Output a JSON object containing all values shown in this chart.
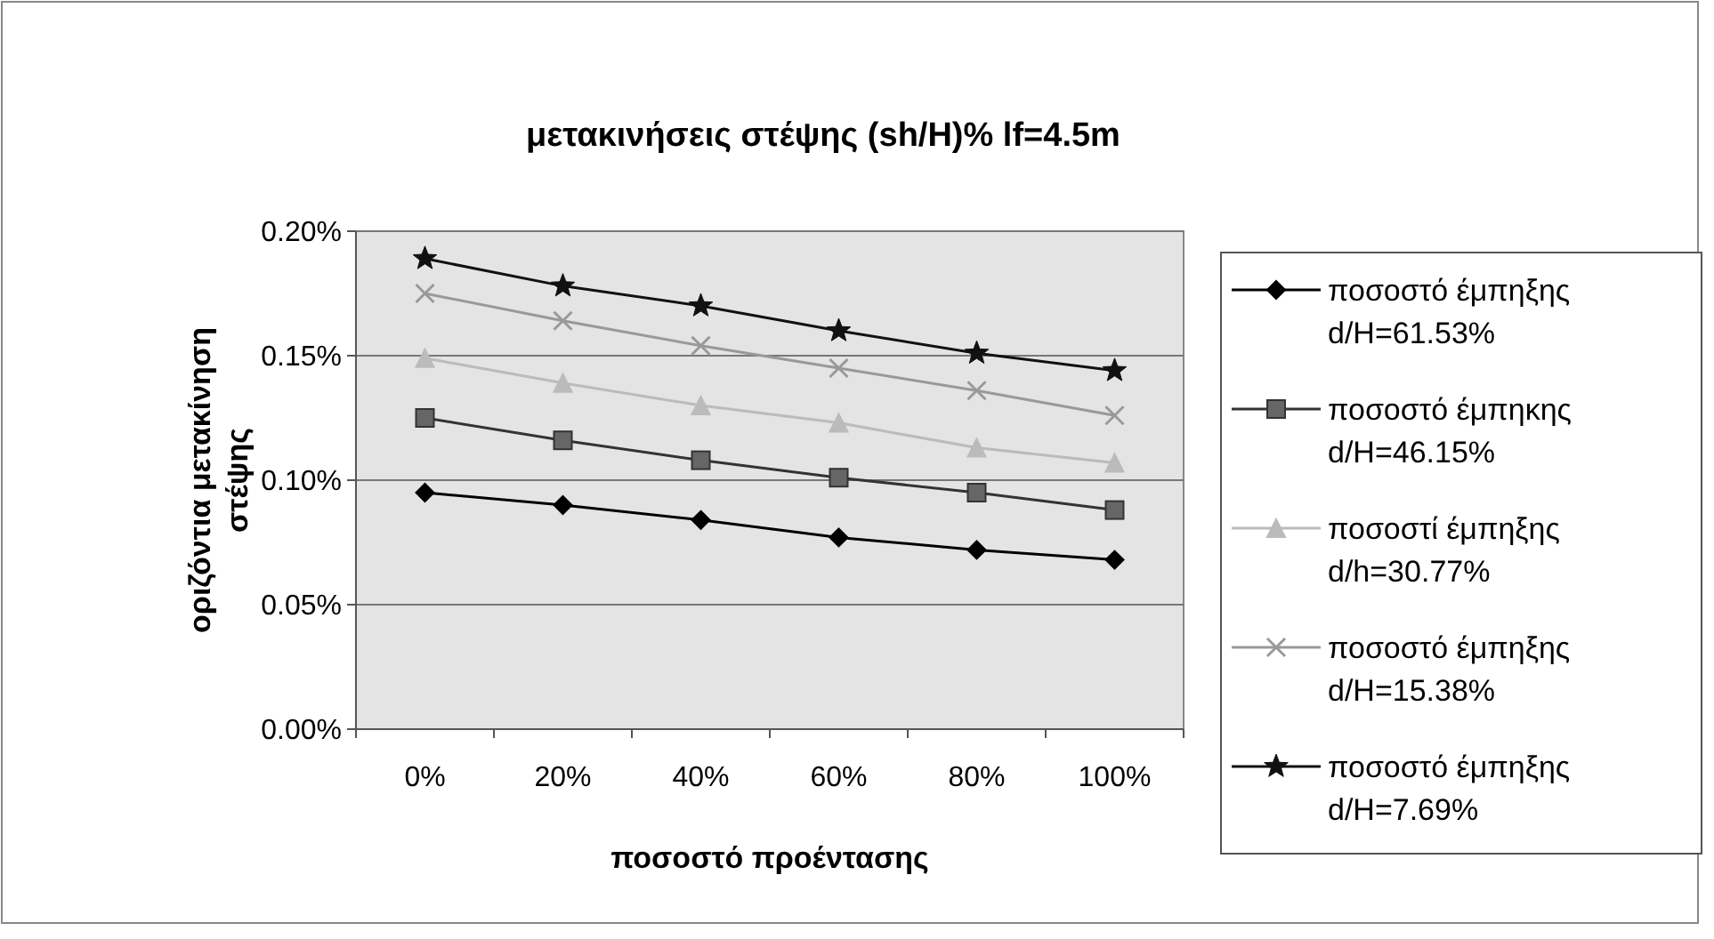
{
  "chart_data": {
    "type": "line",
    "title": "μετακινήσεις στέψης (sh/H)% lf=4.5m",
    "xlabel": "ποσοστό προέντασης",
    "ylabel": "οριζόντια μετακίνηση στέψης",
    "categories": [
      "0%",
      "20%",
      "40%",
      "60%",
      "80%",
      "100%"
    ],
    "ylim": [
      0,
      0.2
    ],
    "yticks": [
      {
        "value": 0,
        "label": "0.00%"
      },
      {
        "value": 0.05,
        "label": "0.05%"
      },
      {
        "value": 0.1,
        "label": "0.10%"
      },
      {
        "value": 0.15,
        "label": "0.15%"
      },
      {
        "value": 0.2,
        "label": "0.20%"
      }
    ],
    "grid": "y",
    "legend": "right",
    "series": [
      {
        "name": "ποσοστό έμπηξης d/H=61.53%",
        "color": "#000000",
        "marker": "diamond",
        "values": [
          0.095,
          0.09,
          0.084,
          0.077,
          0.072,
          0.068
        ]
      },
      {
        "name": "ποσοστό έμπηκης d/H=46.15%",
        "color": "#333333",
        "marker": "square",
        "values": [
          0.125,
          0.116,
          0.108,
          0.101,
          0.095,
          0.088
        ]
      },
      {
        "name": "ποσοστί έμπηξης d/h=30.77%",
        "color": "#bbbbbb",
        "marker": "triangle",
        "values": [
          0.149,
          0.139,
          0.13,
          0.123,
          0.113,
          0.107
        ]
      },
      {
        "name": "ποσοστό έμπηξης d/H=15.38%",
        "color": "#999999",
        "marker": "cross",
        "values": [
          0.175,
          0.164,
          0.154,
          0.145,
          0.136,
          0.126
        ]
      },
      {
        "name": "ποσοστό έμπηξης d/H=7.69%",
        "color": "#111111",
        "marker": "star",
        "values": [
          0.189,
          0.178,
          0.17,
          0.16,
          0.151,
          0.144
        ]
      }
    ]
  }
}
